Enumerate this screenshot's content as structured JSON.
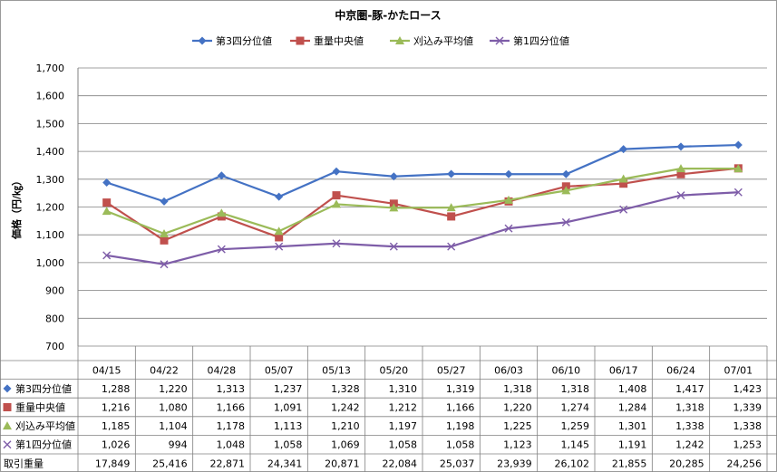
{
  "chart_data": {
    "type": "line",
    "title": "中京圏-豚-かたロース",
    "xlabel": "",
    "ylabel": "価格（円/㎏）",
    "ylim": [
      700,
      1700
    ],
    "yticks": [
      "700",
      "800",
      "900",
      "1,000",
      "1,100",
      "1,200",
      "1,300",
      "1,400",
      "1,500",
      "1,600",
      "1,700"
    ],
    "ytick_values": [
      700,
      800,
      900,
      1000,
      1100,
      1200,
      1300,
      1400,
      1500,
      1600,
      1700
    ],
    "grid": true,
    "legend": "top",
    "categories": [
      "04/15",
      "04/22",
      "04/28",
      "05/07",
      "05/13",
      "05/20",
      "05/27",
      "06/03",
      "06/10",
      "06/17",
      "06/24",
      "07/01"
    ],
    "series": [
      {
        "name": "第3四分位値",
        "marker": "diamond",
        "color": "#4472C4",
        "values": [
          1288,
          1220,
          1313,
          1237,
          1328,
          1310,
          1319,
          1318,
          1318,
          1408,
          1417,
          1423
        ],
        "labels": [
          "1,288",
          "1,220",
          "1,313",
          "1,237",
          "1,328",
          "1,310",
          "1,319",
          "1,318",
          "1,318",
          "1,408",
          "1,417",
          "1,423"
        ]
      },
      {
        "name": "重量中央値",
        "marker": "square",
        "color": "#C0504D",
        "values": [
          1216,
          1080,
          1166,
          1091,
          1242,
          1212,
          1166,
          1220,
          1274,
          1284,
          1318,
          1339
        ],
        "labels": [
          "1,216",
          "1,080",
          "1,166",
          "1,091",
          "1,242",
          "1,212",
          "1,166",
          "1,220",
          "1,274",
          "1,284",
          "1,318",
          "1,339"
        ]
      },
      {
        "name": "刈込み平均値",
        "marker": "triangle",
        "color": "#9BBB59",
        "values": [
          1185,
          1104,
          1178,
          1113,
          1210,
          1197,
          1198,
          1225,
          1259,
          1301,
          1338,
          1338
        ],
        "labels": [
          "1,185",
          "1,104",
          "1,178",
          "1,113",
          "1,210",
          "1,197",
          "1,198",
          "1,225",
          "1,259",
          "1,301",
          "1,338",
          "1,338"
        ]
      },
      {
        "name": "第1四分位値",
        "marker": "x",
        "color": "#7E5DA8",
        "values": [
          1026,
          994,
          1048,
          1058,
          1069,
          1058,
          1058,
          1123,
          1145,
          1191,
          1242,
          1253
        ],
        "labels": [
          "1,026",
          "994",
          "1,048",
          "1,058",
          "1,069",
          "1,058",
          "1,058",
          "1,123",
          "1,145",
          "1,191",
          "1,242",
          "1,253"
        ]
      }
    ],
    "extra_rows": [
      {
        "name": "取引重量",
        "labels": [
          "17,849",
          "25,416",
          "22,871",
          "24,341",
          "20,871",
          "22,084",
          "25,037",
          "23,939",
          "26,102",
          "21,855",
          "20,285",
          "24,256"
        ]
      }
    ]
  }
}
